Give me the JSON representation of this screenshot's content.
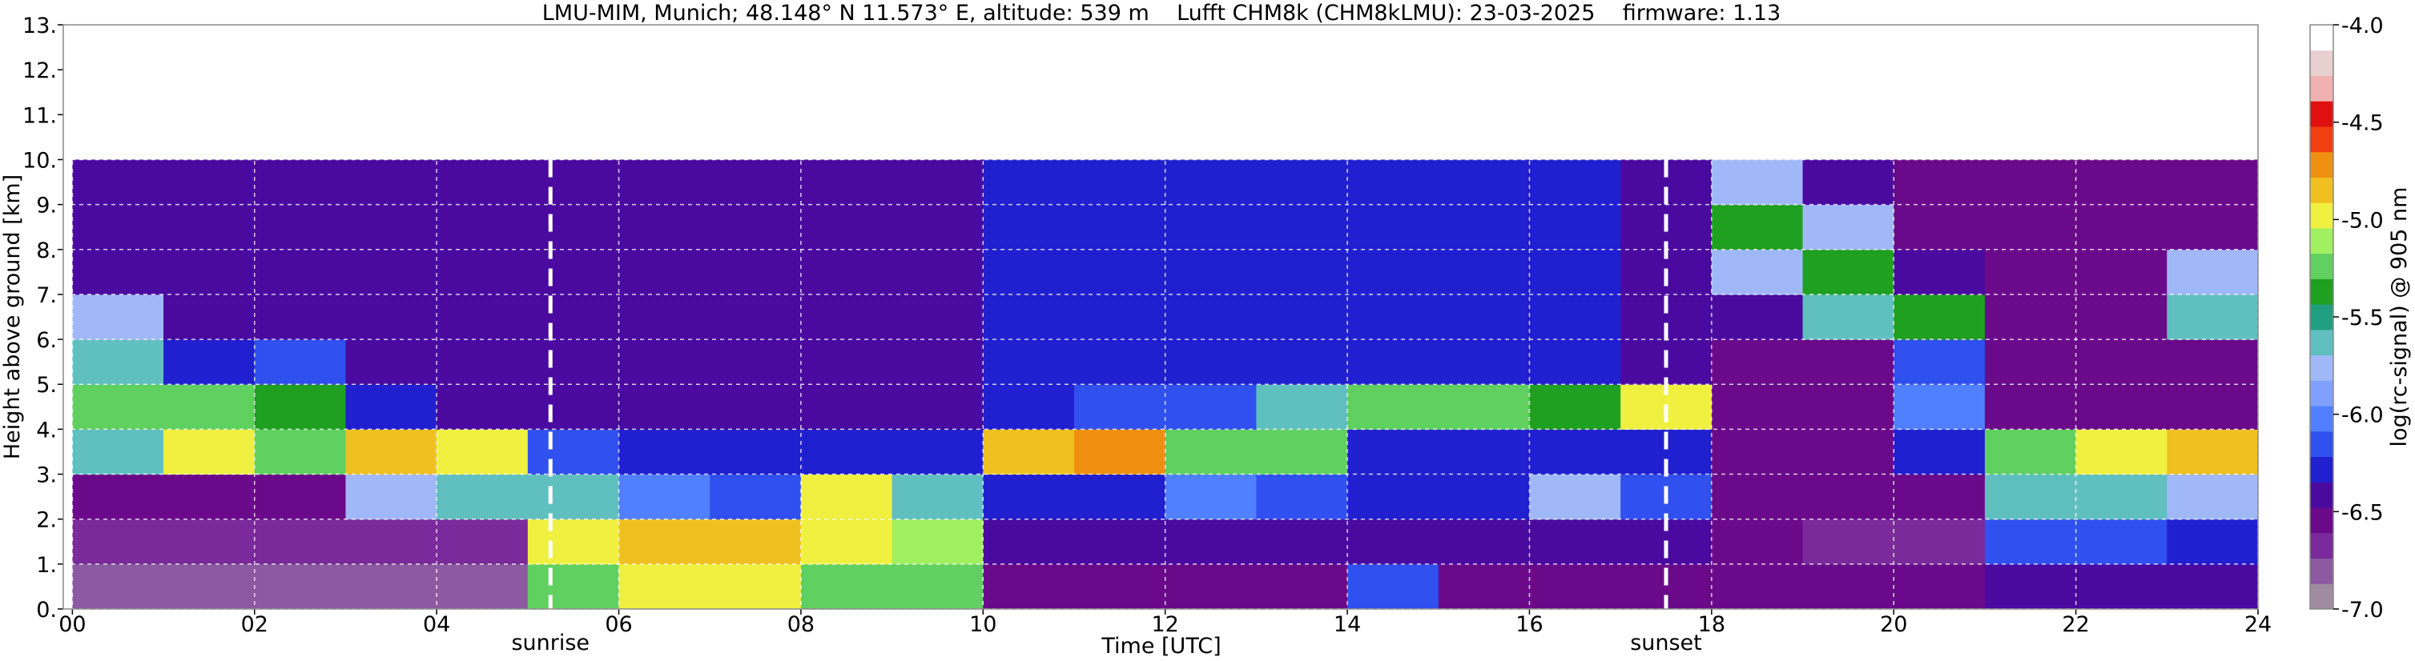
{
  "chart_data": {
    "type": "heatmap",
    "title": "LMU-MIM, Munich; 48.148° N 11.573° E, altitude: 539 m    Lufft CHM8k (CHM8kLMU): 23-03-2025    firmware: 1.13",
    "x_label": "Time [UTC]",
    "y_label": "Height above ground [km]",
    "colorbar_label": "log(rc-signal) @ 905 nm",
    "xlim": [
      -0.1,
      24
    ],
    "ylim": [
      0,
      13
    ],
    "xticks": [
      {
        "value": 0,
        "label": "00"
      },
      {
        "value": 2,
        "label": "02"
      },
      {
        "value": 4,
        "label": "04"
      },
      {
        "value": 6,
        "label": "06"
      },
      {
        "value": 8,
        "label": "08"
      },
      10,
      12,
      14,
      16,
      18,
      20,
      22,
      24
    ],
    "yticks": [
      {
        "value": 0,
        "label": "0."
      },
      {
        "value": 1,
        "label": "1."
      },
      {
        "value": 2,
        "label": "2."
      },
      {
        "value": 3,
        "label": "3."
      },
      {
        "value": 4,
        "label": "4."
      },
      {
        "value": 5,
        "label": "5."
      },
      {
        "value": 6,
        "label": "6."
      },
      {
        "value": 7,
        "label": "7."
      },
      {
        "value": 8,
        "label": "8."
      },
      {
        "value": 9,
        "label": "9."
      },
      {
        "value": 10,
        "label": "10."
      },
      {
        "value": 11,
        "label": "11."
      },
      {
        "value": 12,
        "label": "12."
      },
      {
        "value": 13,
        "label": "13."
      }
    ],
    "clim": [
      -7,
      -4
    ],
    "cticks": [
      {
        "value": -7,
        "label": "-7.0"
      },
      {
        "value": -6.5,
        "label": "-6.5"
      },
      {
        "value": -6,
        "label": "-6.0"
      },
      {
        "value": -5.5,
        "label": "-5.5"
      },
      {
        "value": -5,
        "label": "-5.0"
      },
      {
        "value": -4.5,
        "label": "-4.5"
      },
      {
        "value": -4,
        "label": "-4.0"
      }
    ],
    "colors": [
      "#a08ca0",
      "#8c5aa0",
      "#7a2a9a",
      "#6a0a8a",
      "#4a0aa0",
      "#2020d0",
      "#3050f0",
      "#5080ff",
      "#80a0ff",
      "#a0b8f8",
      "#60c0c0",
      "#20a080",
      "#20a020",
      "#60d060",
      "#a0f060",
      "#f0f040",
      "#f0c020",
      "#f09010",
      "#f04010",
      "#e01010",
      "#f0b0b0",
      "#e8d0d0",
      "#ffffff"
    ],
    "grid": true,
    "x_edges": [
      0,
      1,
      2,
      3,
      4,
      5,
      6,
      7,
      8,
      9,
      10,
      11,
      12,
      13,
      14,
      15,
      16,
      17,
      18,
      19,
      20,
      21,
      22,
      23,
      24
    ],
    "y_edges": [
      0,
      1,
      2,
      3,
      4,
      5,
      6,
      7,
      8,
      9,
      10
    ],
    "z": [
      [
        -6.8,
        -6.7,
        -6.6,
        -5.6,
        -5.2,
        -5.6,
        -5.8,
        -6.4,
        -6.4,
        -6.4
      ],
      [
        -6.8,
        -6.7,
        -6.5,
        -5.0,
        -5.3,
        -6.3,
        -6.4,
        -6.4,
        -6.4,
        -6.4
      ],
      [
        -6.8,
        -6.7,
        -6.5,
        -5.2,
        -5.4,
        -6.2,
        -6.4,
        -6.4,
        -6.4,
        -6.4
      ],
      [
        -6.8,
        -6.7,
        -5.8,
        -4.8,
        -6.3,
        -6.4,
        -6.4,
        -6.4,
        -6.4,
        -6.4
      ],
      [
        -6.8,
        -6.7,
        -5.6,
        -5.0,
        -6.4,
        -6.4,
        -6.4,
        -6.4,
        -6.4,
        -6.4
      ],
      [
        -5.2,
        -5.0,
        -5.6,
        -6.2,
        -6.4,
        -6.4,
        -6.4,
        -6.4,
        -6.4,
        -6.4
      ],
      [
        -5.0,
        -4.8,
        -6.0,
        -6.3,
        -6.4,
        -6.4,
        -6.4,
        -6.4,
        -6.4,
        -6.4
      ],
      [
        -5.0,
        -4.9,
        -6.2,
        -6.3,
        -6.4,
        -6.4,
        -6.4,
        -6.4,
        -6.4,
        -6.4
      ],
      [
        -5.2,
        -5.0,
        -5.0,
        -6.3,
        -6.4,
        -6.4,
        -6.4,
        -6.4,
        -6.4,
        -6.4
      ],
      [
        -5.3,
        -5.1,
        -5.6,
        -6.3,
        -6.4,
        -6.4,
        -6.4,
        -6.4,
        -6.4,
        -6.4
      ],
      [
        -6.6,
        -6.4,
        -6.3,
        -4.9,
        -6.3,
        -6.3,
        -6.3,
        -6.3,
        -6.3,
        -6.3
      ],
      [
        -6.6,
        -6.4,
        -6.3,
        -4.7,
        -6.2,
        -6.3,
        -6.3,
        -6.3,
        -6.3,
        -6.3
      ],
      [
        -6.6,
        -6.4,
        -6.0,
        -5.2,
        -6.2,
        -6.3,
        -6.3,
        -6.3,
        -6.3,
        -6.3
      ],
      [
        -6.6,
        -6.4,
        -6.2,
        -5.3,
        -5.6,
        -6.3,
        -6.3,
        -6.3,
        -6.3,
        -6.3
      ],
      [
        -6.2,
        -6.4,
        -6.3,
        -6.3,
        -5.2,
        -6.3,
        -6.3,
        -6.3,
        -6.3,
        -6.3
      ],
      [
        -6.6,
        -6.4,
        -6.3,
        -6.3,
        -5.2,
        -6.3,
        -6.3,
        -6.3,
        -6.3,
        -6.3
      ],
      [
        -6.6,
        -6.4,
        -5.8,
        -6.3,
        -5.4,
        -6.3,
        -6.3,
        -6.3,
        -6.3,
        -6.3
      ],
      [
        -6.6,
        -6.4,
        -6.2,
        -6.3,
        -5.0,
        -6.4,
        -6.4,
        -6.4,
        -6.4,
        -6.4
      ],
      [
        -6.6,
        -6.6,
        -6.6,
        -6.6,
        -6.6,
        -6.6,
        -6.4,
        -5.8,
        -5.4,
        -5.8
      ],
      [
        -6.5,
        -6.7,
        -6.6,
        -6.6,
        -6.6,
        -6.6,
        -5.6,
        -5.4,
        -5.8,
        -6.4
      ],
      [
        -6.5,
        -6.7,
        -6.6,
        -6.3,
        -6.0,
        -6.2,
        -5.4,
        -6.4,
        -6.6,
        -6.6
      ],
      [
        -6.4,
        -6.2,
        -5.6,
        -5.2,
        -6.6,
        -6.6,
        -6.6,
        -6.6,
        -6.6,
        -6.6
      ],
      [
        -6.4,
        -6.2,
        -5.6,
        -5.0,
        -6.6,
        -6.6,
        -6.6,
        -6.6,
        -6.6,
        -6.6
      ],
      [
        -6.4,
        -6.3,
        -5.8,
        -4.8,
        -6.6,
        -6.6,
        -5.6,
        -5.8,
        -6.6,
        -6.6
      ]
    ],
    "annotations": [
      {
        "text": "sunrise",
        "x": 5.25
      },
      {
        "text": "sunset",
        "x": 17.5
      }
    ]
  }
}
